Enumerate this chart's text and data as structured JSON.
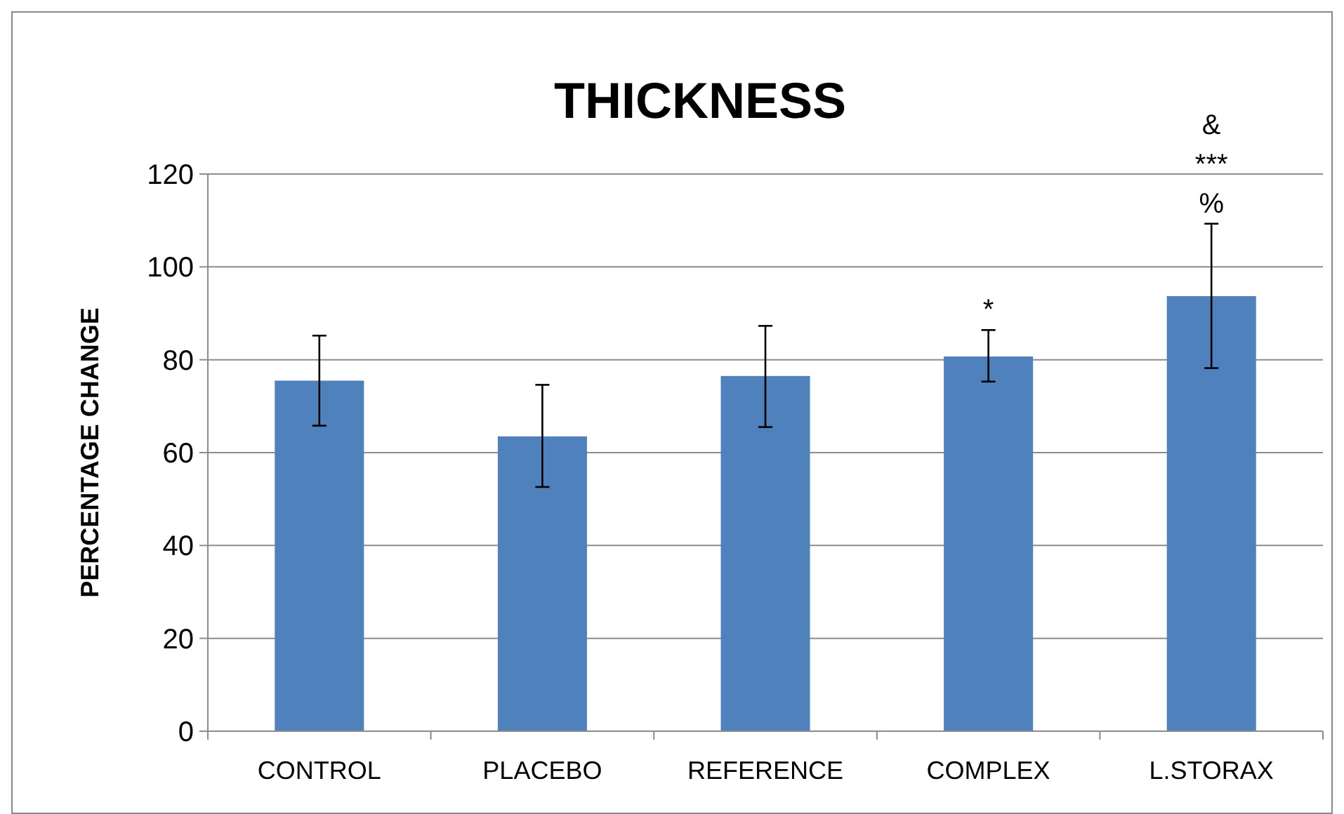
{
  "chart_data": {
    "type": "bar",
    "title": "THICKNESS",
    "ylabel": "PERCENTAGE  CHANGE",
    "categories": [
      "CONTROL",
      "PLACEBO",
      "REFERENCE",
      "COMPLEX",
      "L.STORAX"
    ],
    "values": [
      75.5,
      63.5,
      76.5,
      80.7,
      93.7
    ],
    "errors": [
      [
        65.8,
        85.2
      ],
      [
        52.6,
        74.6
      ],
      [
        65.5,
        87.3
      ],
      [
        75.3,
        86.4
      ],
      [
        78.2,
        109.3
      ]
    ],
    "color": "#4f81bd",
    "ylim": [
      0,
      120
    ],
    "yticks": [
      0,
      20,
      40,
      60,
      80,
      100,
      120
    ],
    "grid": "y",
    "annotations": [
      {
        "text": "*",
        "x": "COMPLEX",
        "y": 86.4
      },
      {
        "text": "%",
        "x": "L.STORAX",
        "y": 109.3
      },
      {
        "text": "***",
        "x": "L.STORAX",
        "y": 109.3
      },
      {
        "text": "&",
        "x": "L.STORAX",
        "y": 109.3
      }
    ]
  }
}
